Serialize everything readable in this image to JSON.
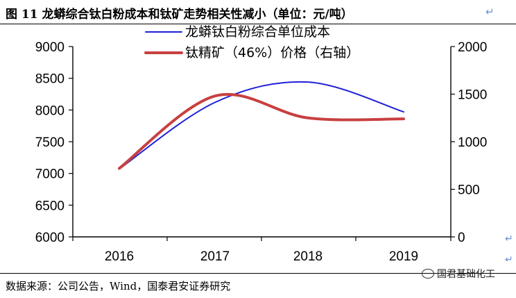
{
  "title": "图 11 龙蟒综合钛白粉成本和钛矿走势相关性减小（单位：元/吨）",
  "title_mark": "↵",
  "source": "数据来源：公司公告，Wind，国泰君安证券研究",
  "watermark": "国君基础化工",
  "side_marks": [
    "↵",
    "↵"
  ],
  "colors": {
    "cost_line": "#1f1fd6",
    "ore_line": "#c84040"
  },
  "chart_data": {
    "type": "line",
    "categories": [
      "2016",
      "2017",
      "2018",
      "2019"
    ],
    "series": [
      {
        "name": "龙蟒钛白粉综合单位成本",
        "axis": "left",
        "values": [
          7070,
          8120,
          8440,
          7970
        ]
      },
      {
        "name": "钛精矿（46%）价格（右轴）",
        "axis": "right",
        "values": [
          720,
          1480,
          1250,
          1240
        ]
      }
    ],
    "y_left": {
      "min": 6000,
      "max": 9000,
      "ticks": [
        6000,
        6500,
        7000,
        7500,
        8000,
        8500,
        9000
      ]
    },
    "y_right": {
      "min": 0,
      "max": 2000,
      "ticks": [
        0,
        500,
        1000,
        1500,
        2000
      ]
    },
    "legend_position": "top-center",
    "grid": false
  }
}
